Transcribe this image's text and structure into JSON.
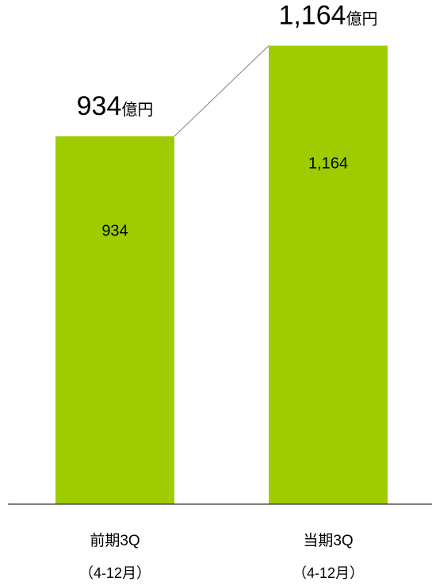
{
  "colors": {
    "bar": "#9ECC00",
    "axis": "#333333",
    "connector": "#808080"
  },
  "chart_data": {
    "type": "bar",
    "categories": [
      "前期3Q",
      "当期3Q"
    ],
    "category_sublabels": [
      "（4-12月）",
      "（4-12月）"
    ],
    "values": [
      934,
      1164
    ],
    "data_labels": [
      "934",
      "1,164"
    ],
    "total_labels": [
      {
        "number": "934",
        "unit": "億円"
      },
      {
        "number": "1,164",
        "unit": "億円"
      }
    ],
    "ylim": [
      0,
      1280
    ],
    "grid": false,
    "legend": "none"
  }
}
